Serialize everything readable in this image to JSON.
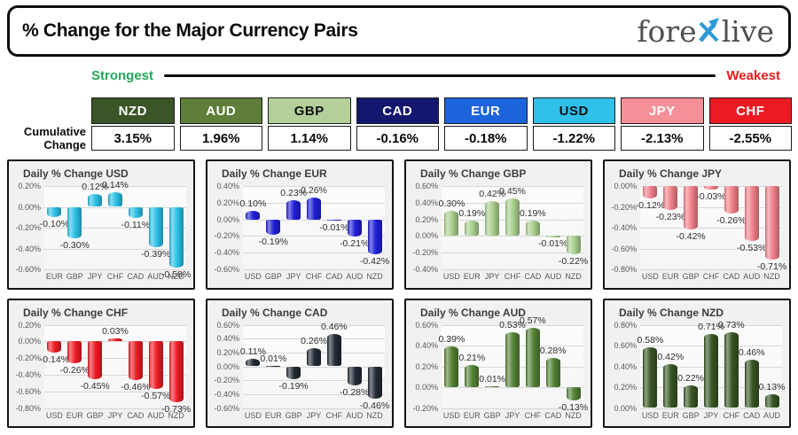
{
  "header": {
    "title": "% Change for the Major Currency Pairs",
    "logo": {
      "pre": "fore",
      "x": "x",
      "post": "live",
      "x_color": "#2E9BD8",
      "text_color": "#4f4f4f"
    }
  },
  "scale": {
    "strongest": "Strongest",
    "weakest": "Weakest",
    "strongest_color": "#22A95B",
    "weakest_color": "#E81C1C"
  },
  "summary": {
    "row_label_line1": "Cumulative",
    "row_label_line2": "Change",
    "items": [
      {
        "code": "NZD",
        "value": "3.15%",
        "bg": "#3A5526",
        "fg": "#FFFFFF"
      },
      {
        "code": "AUD",
        "value": "1.96%",
        "bg": "#5E7E3A",
        "fg": "#FFFFFF"
      },
      {
        "code": "GBP",
        "value": "1.14%",
        "bg": "#B4D09A",
        "fg": "#111111"
      },
      {
        "code": "CAD",
        "value": "-0.16%",
        "bg": "#13186E",
        "fg": "#FFFFFF"
      },
      {
        "code": "EUR",
        "value": "-0.18%",
        "bg": "#1C64DB",
        "fg": "#FFFFFF"
      },
      {
        "code": "USD",
        "value": "-1.22%",
        "bg": "#2FC0EA",
        "fg": "#111111"
      },
      {
        "code": "JPY",
        "value": "-2.13%",
        "bg": "#F58F98",
        "fg": "#FFFFFF"
      },
      {
        "code": "CHF",
        "value": "-2.55%",
        "bg": "#EC1B23",
        "fg": "#FFFFFF"
      }
    ]
  },
  "chart_data": [
    {
      "type": "bar",
      "title": "Daily % Change USD",
      "categories": [
        "EUR",
        "GBP",
        "JPY",
        "CHF",
        "CAD",
        "AUD",
        "NZD"
      ],
      "values": [
        -0.1,
        -0.3,
        0.12,
        0.14,
        -0.11,
        -0.39,
        -0.58
      ],
      "ticks": [
        0.2,
        0.0,
        -0.2,
        -0.4,
        -0.6
      ],
      "ylim": [
        -0.6,
        0.2
      ],
      "grid": true,
      "legend": false,
      "bar_color": "#2BC0E6"
    },
    {
      "type": "bar",
      "title": "Daily % Change EUR",
      "categories": [
        "USD",
        "GBP",
        "JPY",
        "CHF",
        "CAD",
        "AUD",
        "NZD"
      ],
      "values": [
        0.1,
        -0.19,
        0.23,
        0.26,
        -0.01,
        -0.21,
        -0.42
      ],
      "ticks": [
        0.4,
        0.2,
        0.0,
        -0.2,
        -0.4,
        -0.6
      ],
      "ylim": [
        -0.6,
        0.4
      ],
      "grid": true,
      "legend": false,
      "bar_color": "#1F1FD9"
    },
    {
      "type": "bar",
      "title": "Daily % Change GBP",
      "categories": [
        "USD",
        "EUR",
        "JPY",
        "CHF",
        "CAD",
        "AUD",
        "NZD"
      ],
      "values": [
        0.3,
        0.19,
        0.42,
        0.45,
        0.19,
        -0.01,
        -0.22
      ],
      "ticks": [
        0.6,
        0.4,
        0.2,
        0.0,
        -0.2,
        -0.4
      ],
      "ylim": [
        -0.4,
        0.6
      ],
      "grid": true,
      "legend": false,
      "bar_color": "#A9D08E"
    },
    {
      "type": "bar",
      "title": "Daily % Change JPY",
      "categories": [
        "USD",
        "EUR",
        "GBP",
        "CHF",
        "CAD",
        "AUD",
        "NZD"
      ],
      "values": [
        -0.12,
        -0.23,
        -0.42,
        -0.03,
        -0.26,
        -0.53,
        -0.71
      ],
      "ticks": [
        0.0,
        -0.2,
        -0.4,
        -0.6,
        -0.8
      ],
      "ylim": [
        -0.8,
        0.0
      ],
      "grid": true,
      "legend": false,
      "bar_color": "#F2808A"
    },
    {
      "type": "bar",
      "title": "Daily % Change CHF",
      "categories": [
        "USD",
        "EUR",
        "GBP",
        "JPY",
        "CAD",
        "AUD",
        "NZD"
      ],
      "values": [
        -0.14,
        -0.26,
        -0.45,
        0.03,
        -0.46,
        -0.57,
        -0.73
      ],
      "ticks": [
        0.2,
        0.0,
        -0.2,
        -0.4,
        -0.6,
        -0.8
      ],
      "ylim": [
        -0.8,
        0.2
      ],
      "grid": true,
      "legend": false,
      "bar_color": "#EE1C25"
    },
    {
      "type": "bar",
      "title": "Daily % Change CAD",
      "categories": [
        "USD",
        "EUR",
        "GBP",
        "JPY",
        "CHF",
        "AUD",
        "NZD"
      ],
      "values": [
        0.11,
        0.01,
        -0.19,
        0.26,
        0.46,
        -0.28,
        -0.46
      ],
      "ticks": [
        0.6,
        0.4,
        0.2,
        0.0,
        -0.2,
        -0.4,
        -0.6
      ],
      "ylim": [
        -0.6,
        0.6
      ],
      "grid": true,
      "legend": false,
      "bar_color": "#222A35"
    },
    {
      "type": "bar",
      "title": "Daily % Change AUD",
      "categories": [
        "USD",
        "EUR",
        "GBP",
        "JPY",
        "CHF",
        "CAD",
        "NZD"
      ],
      "values": [
        0.39,
        0.21,
        0.01,
        0.53,
        0.57,
        0.28,
        -0.13
      ],
      "ticks": [
        0.6,
        0.4,
        0.2,
        0.0,
        -0.2
      ],
      "ylim": [
        -0.2,
        0.6
      ],
      "grid": true,
      "legend": false,
      "bar_color": "#538135"
    },
    {
      "type": "bar",
      "title": "Daily % Change NZD",
      "categories": [
        "USD",
        "EUR",
        "GBP",
        "JPY",
        "CHF",
        "CAD",
        "AUD"
      ],
      "values": [
        0.58,
        0.42,
        0.22,
        0.71,
        0.73,
        0.46,
        0.13
      ],
      "ticks": [
        0.8,
        0.6,
        0.4,
        0.2,
        0.0
      ],
      "ylim": [
        0.0,
        0.8
      ],
      "grid": true,
      "legend": false,
      "bar_color": "#375623"
    }
  ]
}
